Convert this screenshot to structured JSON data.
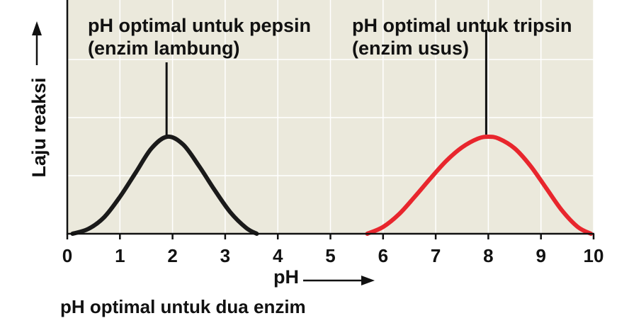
{
  "chart_data": {
    "type": "line",
    "title": "",
    "caption": "pH optimal untuk dua enzim",
    "xlabel": "pH",
    "ylabel": "Laju reaksi",
    "xlim": [
      0,
      10
    ],
    "x_ticks": [
      "0",
      "1",
      "2",
      "3",
      "4",
      "5",
      "6",
      "7",
      "8",
      "9",
      "10"
    ],
    "grid": true,
    "colors": {
      "plot_background": "#ebe9dc",
      "grid": "#ffffff",
      "axis": "#111111"
    },
    "series": [
      {
        "color": "#1a1a1a",
        "x": [
          0.1,
          0.4,
          0.7,
          1.0,
          1.3,
          1.6,
          1.9,
          2.2,
          2.5,
          2.8,
          3.1,
          3.4,
          3.6
        ],
        "y": [
          0.0,
          0.05,
          0.17,
          0.38,
          0.63,
          0.88,
          1.0,
          0.92,
          0.7,
          0.45,
          0.22,
          0.06,
          0.0
        ]
      },
      {
        "color": "#e8262d",
        "x": [
          5.7,
          6.0,
          6.3,
          6.6,
          6.9,
          7.2,
          7.5,
          7.8,
          8.0,
          8.2,
          8.5,
          8.8,
          9.1,
          9.4,
          9.7,
          9.95
        ],
        "y": [
          0.0,
          0.07,
          0.2,
          0.38,
          0.57,
          0.75,
          0.89,
          0.98,
          1.0,
          0.98,
          0.88,
          0.7,
          0.47,
          0.24,
          0.07,
          0.0
        ]
      }
    ],
    "annotations": [
      {
        "id": "pepsin",
        "lines": [
          "pH optimal untuk pepsin",
          "(enzim lambung)"
        ]
      },
      {
        "id": "tripsin",
        "lines": [
          "pH optimal untuk tripsin",
          "(enzim usus)"
        ]
      }
    ]
  }
}
